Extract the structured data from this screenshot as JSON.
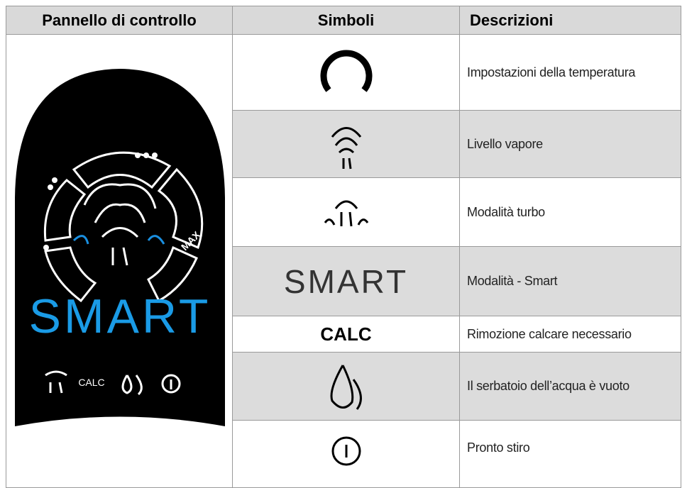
{
  "table": {
    "headers": [
      "Pannello di controllo",
      "Simboli",
      "Descrizioni"
    ],
    "rows": [
      {
        "description": "Impostazioni della temperatura"
      },
      {
        "description": "Livello vapore"
      },
      {
        "description": "Modalità turbo"
      },
      {
        "symbol": "SMART",
        "description": "Modalità - Smart"
      },
      {
        "symbol": "CALC",
        "description": "Rimozione calcare necessario"
      },
      {
        "description": "Il serbatoio dell’acqua è vuoto"
      },
      {
        "description": "Pronto stiro"
      }
    ]
  },
  "panel": {
    "max": "MAX",
    "smart": "SMART",
    "calc": "CALC"
  }
}
